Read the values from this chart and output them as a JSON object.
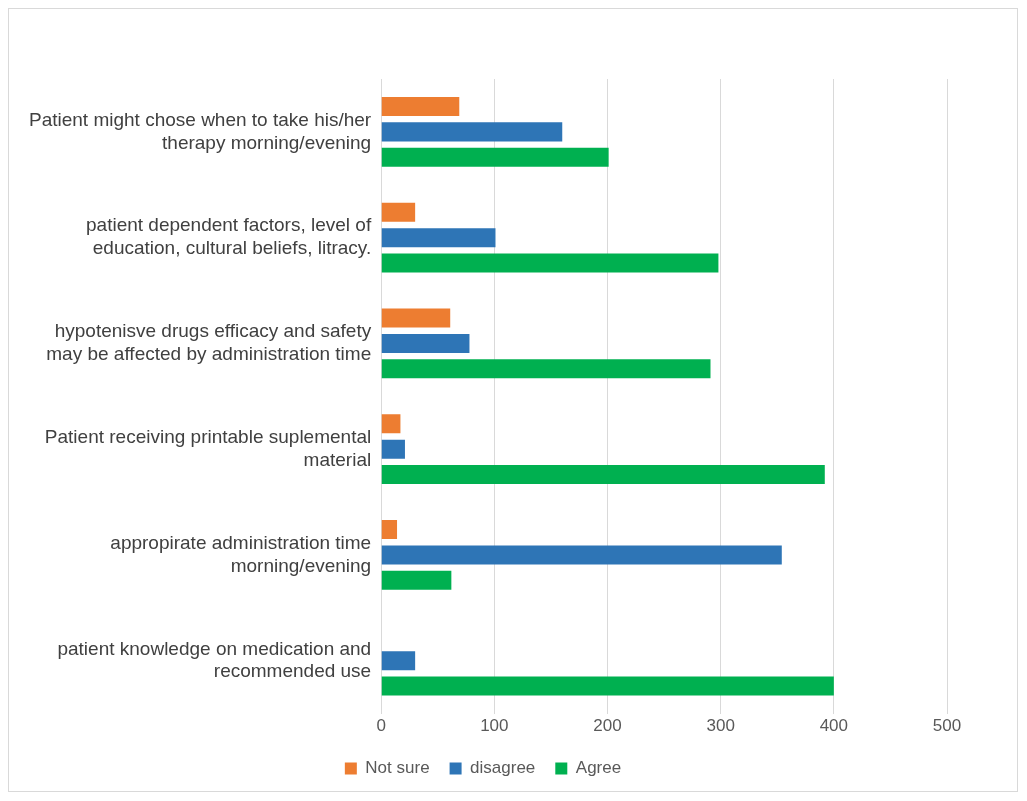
{
  "chart_data": {
    "type": "bar",
    "orientation": "horizontal",
    "categories": [
      "Patient might chose when to take his/her therapy morning/evening",
      "patient dependent factors, level of education, cultural beliefs, litracy.",
      "hypotenisve drugs efficacy and safety may be affected by administration time",
      "Patient receiving printable suplemental material",
      "appropirate administration time morning/evening",
      "patient knowledge on medication and recommended use"
    ],
    "series": [
      {
        "name": "Not sure",
        "color": "#ed7d31",
        "values": [
          69,
          30,
          61,
          17,
          14,
          null
        ]
      },
      {
        "name": "disagree",
        "color": "#2e75b6",
        "values": [
          160,
          101,
          78,
          21,
          354,
          30
        ]
      },
      {
        "name": "Agree",
        "color": "#00b050",
        "values": [
          201,
          298,
          291,
          392,
          62,
          400
        ]
      }
    ],
    "xlim": [
      0,
      500
    ],
    "xticks": [
      0,
      100,
      200,
      300,
      400,
      500
    ],
    "grid": "x",
    "legend": "bottom"
  }
}
